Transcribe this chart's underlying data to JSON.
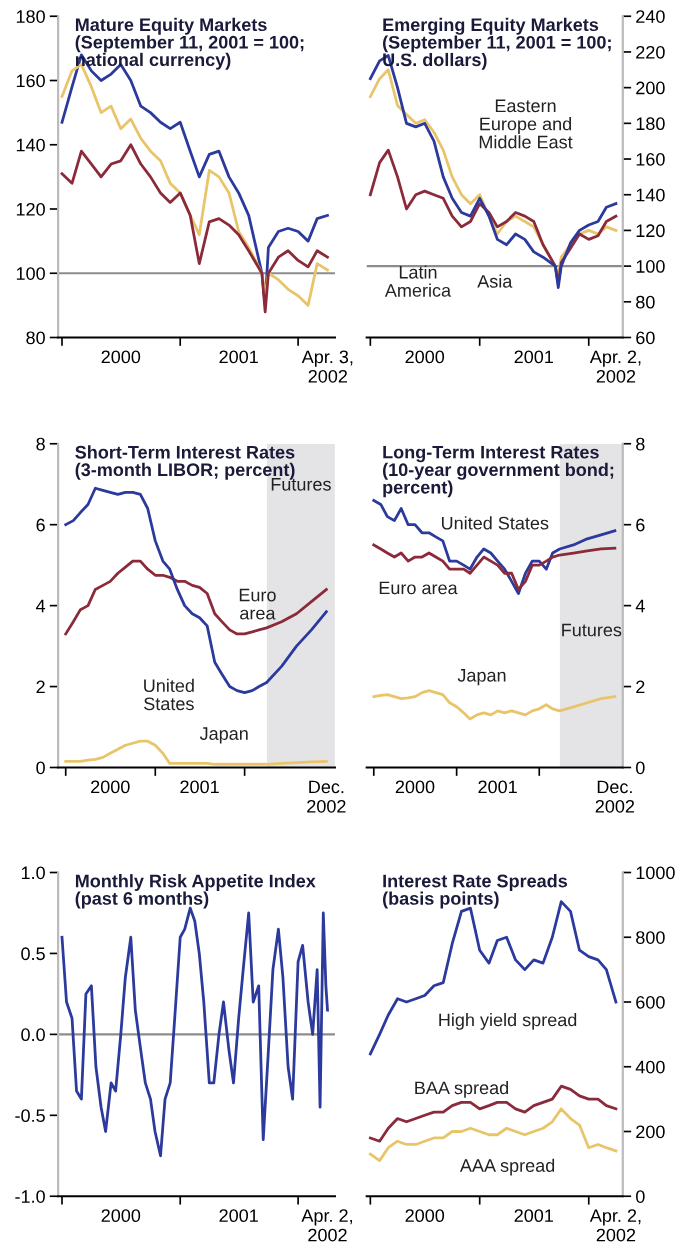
{
  "chart_data": [
    {
      "type": "line",
      "title": "Mature Equity Markets\n(September 11, 2001 = 100;\nnational currency)",
      "legend": false,
      "grid": false,
      "ylim": [
        80,
        180
      ],
      "yticks": [
        80,
        100,
        120,
        140,
        160,
        180
      ],
      "xlim": [
        "1999-12-20",
        "2002-04-25"
      ],
      "xticks": [
        {
          "value": "2000-01-01",
          "label": null
        },
        {
          "value": "2000-07-01",
          "label": "2000"
        },
        {
          "value": "2001-01-01",
          "label": null
        },
        {
          "value": "2001-07-01",
          "label": "2001"
        },
        {
          "value": "2002-01-01",
          "label": null
        },
        {
          "value": "2002-04-03",
          "label": "Apr. 3,\n2002"
        }
      ],
      "ref_lines": [
        {
          "axis": "y",
          "value": 100,
          "color": "#8c8c8c"
        }
      ],
      "x": [
        "2000-01-01",
        "2000-02-01",
        "2000-03-01",
        "2000-04-01",
        "2000-05-01",
        "2000-06-01",
        "2000-07-01",
        "2000-08-01",
        "2000-09-01",
        "2000-10-01",
        "2000-11-01",
        "2000-12-01",
        "2001-01-01",
        "2001-02-01",
        "2001-03-01",
        "2001-04-01",
        "2001-05-01",
        "2001-06-01",
        "2001-07-01",
        "2001-08-01",
        "2001-09-11",
        "2001-09-21",
        "2001-10-01",
        "2001-11-01",
        "2001-12-01",
        "2002-01-01",
        "2002-02-01",
        "2002-03-01",
        "2002-04-02"
      ],
      "series": [
        {
          "color": "#2b3a9c",
          "values": [
            147,
            158,
            168,
            163,
            160,
            162,
            165,
            160,
            152,
            150,
            147,
            145,
            147,
            138,
            130,
            137,
            138,
            130,
            125,
            118,
            100,
            90,
            108,
            113,
            114,
            113,
            110,
            117,
            118
          ]
        },
        {
          "color": "#e8c56a",
          "values": [
            155,
            163,
            165,
            158,
            150,
            152,
            145,
            148,
            142,
            138,
            135,
            128,
            125,
            118,
            112,
            132,
            130,
            125,
            113,
            108,
            100,
            93,
            100,
            98,
            95,
            93,
            90,
            103,
            101
          ]
        },
        {
          "color": "#8b2a3a",
          "values": [
            131,
            128,
            138,
            134,
            130,
            134,
            135,
            140,
            134,
            130,
            125,
            122,
            125,
            118,
            103,
            116,
            117,
            115,
            112,
            107,
            100,
            88,
            100,
            105,
            107,
            104,
            102,
            107,
            105
          ]
        }
      ]
    },
    {
      "type": "line",
      "title": "Emerging Equity Markets\n(September 11, 2001 = 100;\nU.S. dollars)",
      "legend": false,
      "grid": false,
      "ylim": [
        60,
        240
      ],
      "yticks": [
        60,
        80,
        100,
        120,
        140,
        160,
        180,
        200,
        220,
        240
      ],
      "xlim": [
        "1999-12-20",
        "2002-04-25"
      ],
      "xticks": [
        {
          "value": "2000-01-01",
          "label": null
        },
        {
          "value": "2000-07-01",
          "label": "2000"
        },
        {
          "value": "2001-01-01",
          "label": null
        },
        {
          "value": "2001-07-01",
          "label": "2001"
        },
        {
          "value": "2002-01-01",
          "label": null
        },
        {
          "value": "2002-04-02",
          "label": "Apr. 2,\n2002"
        }
      ],
      "ref_lines": [
        {
          "axis": "y",
          "value": 100,
          "color": "#8c8c8c"
        }
      ],
      "x": [
        "2000-01-01",
        "2000-02-01",
        "2000-03-01",
        "2000-04-01",
        "2000-05-01",
        "2000-06-01",
        "2000-07-01",
        "2000-08-01",
        "2000-09-01",
        "2000-10-01",
        "2000-11-01",
        "2000-12-01",
        "2001-01-01",
        "2001-02-01",
        "2001-03-01",
        "2001-04-01",
        "2001-05-01",
        "2001-06-01",
        "2001-07-01",
        "2001-08-01",
        "2001-09-11",
        "2001-09-21",
        "2001-10-01",
        "2001-11-01",
        "2001-12-01",
        "2002-01-01",
        "2002-02-01",
        "2002-03-01",
        "2002-04-02"
      ],
      "series": [
        {
          "name": "Eastern\nEurope and\nMiddle East",
          "color": "#e8c56a",
          "values": [
            195,
            205,
            210,
            190,
            185,
            180,
            182,
            175,
            165,
            150,
            140,
            135,
            140,
            128,
            118,
            125,
            128,
            125,
            122,
            112,
            100,
            95,
            105,
            112,
            118,
            120,
            118,
            122,
            120
          ]
        },
        {
          "name": "Latin\nAmerica",
          "color": "#8b2a3a",
          "values": [
            140,
            158,
            165,
            150,
            132,
            140,
            142,
            140,
            138,
            128,
            122,
            125,
            135,
            130,
            122,
            125,
            130,
            128,
            125,
            112,
            100,
            90,
            102,
            110,
            118,
            115,
            117,
            125,
            128
          ]
        },
        {
          "name": "Asia",
          "color": "#2b3a9c",
          "values": [
            205,
            215,
            218,
            200,
            180,
            178,
            180,
            170,
            150,
            138,
            130,
            128,
            138,
            128,
            115,
            112,
            118,
            115,
            108,
            105,
            100,
            88,
            100,
            113,
            120,
            123,
            125,
            133,
            135
          ]
        }
      ]
    },
    {
      "type": "line",
      "title": "Short-Term Interest Rates\n(3-month LIBOR; percent)",
      "legend": false,
      "grid": false,
      "ylim": [
        0,
        8
      ],
      "yticks": [
        0,
        2,
        4,
        6,
        8
      ],
      "xlim": [
        "1999-12-01",
        "2003-01-05"
      ],
      "xticks": [
        {
          "value": "2000-01-01",
          "label": null
        },
        {
          "value": "2000-07-01",
          "label": "2000"
        },
        {
          "value": "2001-01-01",
          "label": null
        },
        {
          "value": "2001-07-01",
          "label": "2001"
        },
        {
          "value": "2002-01-01",
          "label": null
        },
        {
          "value": "2002-12-01",
          "label": "Dec.\n2002"
        }
      ],
      "bands": [
        {
          "axis": "x",
          "from": "2002-04-02",
          "to": "2003-01-05",
          "label": "Futures",
          "color": "#e4e4e6"
        }
      ],
      "x": [
        "2000-01-01",
        "2000-02-01",
        "2000-03-01",
        "2000-04-01",
        "2000-05-01",
        "2000-06-01",
        "2000-07-01",
        "2000-08-01",
        "2000-09-01",
        "2000-10-01",
        "2000-11-01",
        "2000-12-01",
        "2001-01-01",
        "2001-02-01",
        "2001-03-01",
        "2001-04-01",
        "2001-05-01",
        "2001-06-01",
        "2001-07-01",
        "2001-08-01",
        "2001-09-01",
        "2001-10-01",
        "2001-11-01",
        "2001-12-01",
        "2002-01-01",
        "2002-02-01",
        "2002-03-01",
        "2002-04-01",
        "2002-06-01",
        "2002-08-01",
        "2002-10-01",
        "2002-12-01"
      ],
      "series": [
        {
          "name": "Euro\narea",
          "color": "#8b2a3a",
          "values": [
            3.3,
            3.6,
            3.9,
            4.0,
            4.4,
            4.5,
            4.6,
            4.8,
            4.95,
            5.1,
            5.1,
            4.9,
            4.75,
            4.75,
            4.7,
            4.6,
            4.6,
            4.5,
            4.45,
            4.3,
            3.8,
            3.6,
            3.4,
            3.3,
            3.3,
            3.35,
            3.4,
            3.45,
            3.6,
            3.8,
            4.1,
            4.4
          ]
        },
        {
          "name": "United\nStates",
          "color": "#2b3a9c",
          "values": [
            6.0,
            6.1,
            6.3,
            6.5,
            6.9,
            6.85,
            6.8,
            6.75,
            6.8,
            6.8,
            6.75,
            6.4,
            5.6,
            5.1,
            4.9,
            4.4,
            4.0,
            3.8,
            3.7,
            3.5,
            2.6,
            2.3,
            2.0,
            1.9,
            1.85,
            1.9,
            2.0,
            2.1,
            2.5,
            3.0,
            3.4,
            3.85
          ]
        },
        {
          "name": "Japan",
          "color": "#e8c56a",
          "values": [
            0.15,
            0.15,
            0.15,
            0.18,
            0.2,
            0.25,
            0.35,
            0.45,
            0.55,
            0.6,
            0.65,
            0.65,
            0.55,
            0.35,
            0.1,
            0.1,
            0.1,
            0.1,
            0.1,
            0.1,
            0.08,
            0.08,
            0.08,
            0.08,
            0.08,
            0.08,
            0.08,
            0.08,
            0.1,
            0.12,
            0.14,
            0.15
          ]
        }
      ]
    },
    {
      "type": "line",
      "title": "Long-Term Interest Rates\n(10-year government bond;\npercent)",
      "legend": false,
      "grid": false,
      "ylim": [
        0,
        8
      ],
      "yticks": [
        0,
        2,
        4,
        6,
        8
      ],
      "xlim": [
        "1999-12-01",
        "2003-01-05"
      ],
      "xticks": [
        {
          "value": "2000-01-01",
          "label": null
        },
        {
          "value": "2000-07-01",
          "label": "2000"
        },
        {
          "value": "2001-01-01",
          "label": null
        },
        {
          "value": "2001-07-01",
          "label": "2001"
        },
        {
          "value": "2002-01-01",
          "label": null
        },
        {
          "value": "2002-12-01",
          "label": "Dec.\n2002"
        }
      ],
      "bands": [
        {
          "axis": "x",
          "from": "2002-04-02",
          "to": "2003-01-05",
          "label": "Futures",
          "color": "#e4e4e6"
        }
      ],
      "x": [
        "2000-01-01",
        "2000-02-01",
        "2000-03-01",
        "2000-04-01",
        "2000-05-01",
        "2000-06-01",
        "2000-07-01",
        "2000-08-01",
        "2000-09-01",
        "2000-10-01",
        "2000-11-01",
        "2000-12-01",
        "2001-01-01",
        "2001-02-01",
        "2001-03-01",
        "2001-04-01",
        "2001-05-01",
        "2001-06-01",
        "2001-07-01",
        "2001-08-01",
        "2001-09-01",
        "2001-10-01",
        "2001-11-01",
        "2001-12-01",
        "2002-01-01",
        "2002-02-01",
        "2002-03-01",
        "2002-04-01",
        "2002-06-01",
        "2002-08-01",
        "2002-10-01",
        "2002-12-01"
      ],
      "series": [
        {
          "name": "United States",
          "color": "#2b3a9c",
          "values": [
            6.6,
            6.5,
            6.2,
            6.1,
            6.4,
            6.0,
            6.0,
            5.8,
            5.8,
            5.7,
            5.6,
            5.1,
            5.1,
            5.0,
            4.9,
            5.2,
            5.4,
            5.3,
            5.1,
            4.9,
            4.6,
            4.3,
            4.8,
            5.1,
            5.1,
            4.9,
            5.3,
            5.4,
            5.5,
            5.65,
            5.75,
            5.85
          ]
        },
        {
          "name": "Euro area",
          "color": "#8b2a3a",
          "values": [
            5.5,
            5.4,
            5.3,
            5.2,
            5.3,
            5.1,
            5.2,
            5.2,
            5.3,
            5.2,
            5.1,
            4.9,
            4.9,
            4.9,
            4.8,
            5.0,
            5.2,
            5.1,
            5.0,
            4.8,
            4.8,
            4.4,
            4.6,
            5.0,
            5.0,
            5.1,
            5.2,
            5.25,
            5.3,
            5.35,
            5.4,
            5.42
          ]
        },
        {
          "name": "Japan",
          "color": "#e8c56a",
          "values": [
            1.75,
            1.78,
            1.8,
            1.75,
            1.7,
            1.72,
            1.75,
            1.85,
            1.9,
            1.85,
            1.8,
            1.6,
            1.5,
            1.35,
            1.2,
            1.3,
            1.35,
            1.3,
            1.4,
            1.35,
            1.4,
            1.35,
            1.3,
            1.4,
            1.45,
            1.55,
            1.45,
            1.4,
            1.5,
            1.6,
            1.7,
            1.75
          ]
        }
      ]
    },
    {
      "type": "line",
      "title": "Monthly Risk Appetite Index\n(past 6 months)",
      "legend": false,
      "grid": false,
      "ylim": [
        -1.0,
        1.0
      ],
      "yticks": [
        {
          "value": -1.0,
          "label": "-1.0"
        },
        {
          "value": -0.5,
          "label": "-0.5"
        },
        {
          "value": 0.0,
          "label": "0.0"
        },
        {
          "value": 0.5,
          "label": "0.5"
        },
        {
          "value": 1.0,
          "label": "1.0"
        }
      ],
      "xlim": [
        "1999-12-20",
        "2002-04-25"
      ],
      "xticks": [
        {
          "value": "2000-01-01",
          "label": null
        },
        {
          "value": "2000-07-01",
          "label": "2000"
        },
        {
          "value": "2001-01-01",
          "label": null
        },
        {
          "value": "2001-07-01",
          "label": "2001"
        },
        {
          "value": "2002-01-01",
          "label": null
        },
        {
          "value": "2002-04-02",
          "label": "Apr. 2,\n2002"
        }
      ],
      "ref_lines": [
        {
          "axis": "y",
          "value": 0,
          "color": "#8c8c8c"
        }
      ],
      "x": [
        "2000-01-01",
        "2000-01-15",
        "2000-02-01",
        "2000-02-15",
        "2000-03-01",
        "2000-03-15",
        "2000-04-01",
        "2000-04-15",
        "2000-05-01",
        "2000-05-15",
        "2000-06-01",
        "2000-06-15",
        "2000-07-01",
        "2000-07-15",
        "2000-08-01",
        "2000-08-15",
        "2000-09-01",
        "2000-09-15",
        "2000-10-01",
        "2000-10-15",
        "2000-11-01",
        "2000-11-15",
        "2000-12-01",
        "2000-12-15",
        "2001-01-01",
        "2001-01-15",
        "2001-02-01",
        "2001-02-15",
        "2001-03-01",
        "2001-03-15",
        "2001-04-01",
        "2001-04-15",
        "2001-05-01",
        "2001-05-15",
        "2001-06-01",
        "2001-06-15",
        "2001-07-01",
        "2001-07-15",
        "2001-08-01",
        "2001-08-15",
        "2001-09-01",
        "2001-09-15",
        "2001-10-01",
        "2001-10-15",
        "2001-11-01",
        "2001-11-15",
        "2001-12-01",
        "2001-12-15",
        "2002-01-01",
        "2002-01-15",
        "2002-02-01",
        "2002-02-15",
        "2002-03-01",
        "2002-03-10",
        "2002-03-20",
        "2002-03-28",
        "2002-04-02"
      ],
      "series": [
        {
          "color": "#2b3a9c",
          "values": [
            0.6,
            0.2,
            0.1,
            -0.35,
            -0.4,
            0.25,
            0.3,
            -0.2,
            -0.45,
            -0.6,
            -0.3,
            -0.35,
            0.0,
            0.35,
            0.6,
            0.15,
            -0.1,
            -0.3,
            -0.4,
            -0.6,
            -0.75,
            -0.4,
            -0.3,
            0.1,
            0.6,
            0.65,
            0.78,
            0.7,
            0.5,
            0.2,
            -0.3,
            -0.3,
            0.0,
            0.2,
            -0.1,
            -0.3,
            0.1,
            0.4,
            0.75,
            0.2,
            0.3,
            -0.65,
            -0.1,
            0.4,
            0.65,
            0.35,
            -0.2,
            -0.4,
            0.45,
            0.55,
            0.2,
            0.0,
            0.4,
            -0.45,
            0.75,
            0.3,
            0.15
          ]
        }
      ]
    },
    {
      "type": "line",
      "title": "Interest Rate Spreads\n(basis points)",
      "legend": false,
      "grid": false,
      "ylim": [
        0,
        1000
      ],
      "yticks": [
        0,
        200,
        400,
        600,
        800,
        1000
      ],
      "xlim": [
        "1999-12-20",
        "2002-04-25"
      ],
      "xticks": [
        {
          "value": "2000-01-01",
          "label": null
        },
        {
          "value": "2000-07-01",
          "label": "2000"
        },
        {
          "value": "2001-01-01",
          "label": null
        },
        {
          "value": "2001-07-01",
          "label": "2001"
        },
        {
          "value": "2002-01-01",
          "label": null
        },
        {
          "value": "2002-04-02",
          "label": "Apr. 2,\n2002"
        }
      ],
      "x": [
        "2000-01-01",
        "2000-02-01",
        "2000-03-01",
        "2000-04-01",
        "2000-05-01",
        "2000-06-01",
        "2000-07-01",
        "2000-08-01",
        "2000-09-01",
        "2000-10-01",
        "2000-11-01",
        "2000-12-01",
        "2001-01-01",
        "2001-02-01",
        "2001-03-01",
        "2001-04-01",
        "2001-05-01",
        "2001-06-01",
        "2001-07-01",
        "2001-08-01",
        "2001-09-01",
        "2001-10-01",
        "2001-11-01",
        "2001-12-01",
        "2002-01-01",
        "2002-02-01",
        "2002-03-01",
        "2002-04-02"
      ],
      "series": [
        {
          "name": "High yield spread",
          "color": "#2b3a9c",
          "values": [
            440,
            500,
            560,
            610,
            600,
            610,
            620,
            650,
            660,
            780,
            880,
            890,
            760,
            720,
            790,
            800,
            730,
            700,
            730,
            720,
            800,
            910,
            880,
            760,
            740,
            730,
            700,
            600
          ]
        },
        {
          "name": "BAA spread",
          "color": "#8b2a3a",
          "values": [
            180,
            170,
            210,
            240,
            230,
            240,
            250,
            260,
            260,
            280,
            290,
            290,
            270,
            280,
            290,
            290,
            270,
            260,
            280,
            290,
            300,
            340,
            330,
            310,
            300,
            300,
            280,
            270
          ]
        },
        {
          "name": "AAA spread",
          "color": "#e8c56a",
          "values": [
            130,
            110,
            150,
            170,
            160,
            160,
            170,
            180,
            180,
            200,
            200,
            210,
            200,
            190,
            190,
            210,
            200,
            190,
            200,
            210,
            230,
            270,
            240,
            220,
            150,
            160,
            150,
            140
          ]
        }
      ]
    }
  ]
}
